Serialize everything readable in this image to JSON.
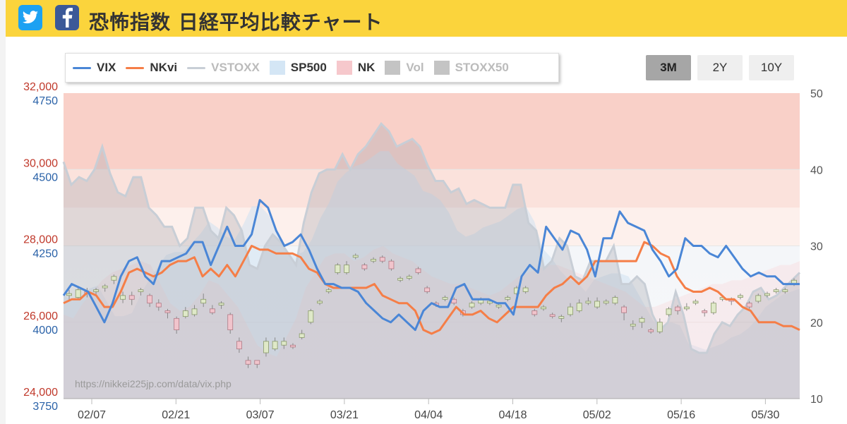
{
  "header": {
    "title": "恐怖指数 日経平均比較チャート",
    "twitter_icon": "twitter-icon",
    "facebook_icon": "facebook-icon",
    "bg_color": "#fbd43c"
  },
  "range_buttons": [
    {
      "label": "3M",
      "active": true
    },
    {
      "label": "2Y",
      "active": false
    },
    {
      "label": "10Y",
      "active": false
    }
  ],
  "legend": [
    {
      "label": "VIX",
      "kind": "line",
      "color": "#4a86d6",
      "text_color": "#333333"
    },
    {
      "label": "NKvi",
      "kind": "line",
      "color": "#f57e47",
      "text_color": "#333333"
    },
    {
      "label": "VSTOXX",
      "kind": "line",
      "color": "#c8ced6",
      "text_color": "#bbbbbb"
    },
    {
      "label": "SP500",
      "kind": "box",
      "color": "#d4e6f5",
      "text_color": "#333333"
    },
    {
      "label": "NK",
      "kind": "box",
      "color": "#f6c8cc",
      "text_color": "#333333"
    },
    {
      "label": "Vol",
      "kind": "box",
      "color": "#c4c4c4",
      "text_color": "#bbbbbb"
    },
    {
      "label": "STOXX50",
      "kind": "box",
      "color": "#c4c4c4",
      "text_color": "#bbbbbb"
    }
  ],
  "watermark": "https://nikkei225jp.com/data/vix.php",
  "chart_data": {
    "type": "line",
    "x_labels": [
      "02/07",
      "02/21",
      "03/07",
      "03/21",
      "04/04",
      "04/18",
      "05/02",
      "05/16",
      "05/30"
    ],
    "axes": {
      "nk": {
        "ticks": [
          "32,000",
          "30,000",
          "28,000",
          "26,000",
          "24,000"
        ],
        "range": [
          24000,
          32000
        ],
        "color": "#c0392b"
      },
      "sp500": {
        "ticks": [
          "4750",
          "4500",
          "4250",
          "4000",
          "3750"
        ],
        "range": [
          3750,
          4750
        ],
        "color": "#2a62a8"
      },
      "vix": {
        "ticks": [
          "50",
          "40",
          "30",
          "20",
          "10"
        ],
        "range": [
          10,
          50
        ],
        "color": "#555555"
      }
    },
    "zones": [
      {
        "from": 40,
        "to": 50,
        "color": "#f9d0c8"
      },
      {
        "from": 35,
        "to": 40,
        "color": "#fbe2dc"
      },
      {
        "from": 30,
        "to": 35,
        "color": "#fdf0ec"
      }
    ],
    "series": [
      {
        "name": "VIX",
        "color": "#4a86d6",
        "values": [
          23.5,
          25,
          24.5,
          24,
          22,
          20,
          22.5,
          26,
          28,
          28.5,
          26,
          25,
          28,
          28,
          28.5,
          29,
          30.5,
          30.5,
          27.5,
          30,
          32.5,
          30,
          30,
          31.5,
          36,
          35,
          32,
          30,
          30.5,
          31.5,
          29.5,
          27,
          25,
          25,
          24.5,
          24.5,
          24,
          22.5,
          21.5,
          20.5,
          20,
          21,
          20,
          19,
          21.5,
          22.5,
          22,
          22,
          24.5,
          25,
          23,
          23,
          23,
          22.5,
          22.5,
          21,
          26,
          27.5,
          26.5,
          32.5,
          31,
          29.5,
          32,
          31.5,
          29.5,
          26,
          31,
          31,
          34.5,
          33,
          32.5,
          32,
          29.5,
          28,
          26,
          27,
          31,
          30,
          30,
          29,
          28.5,
          30,
          28.5,
          27,
          26,
          26.5,
          26,
          26,
          25,
          25,
          25
        ]
      },
      {
        "name": "NKvi",
        "color": "#f57e47",
        "values": [
          22.5,
          23,
          23,
          24,
          23.5,
          22,
          22,
          24,
          26.5,
          27,
          26.5,
          26,
          26.5,
          27.5,
          28,
          28,
          28.5,
          26,
          27,
          26,
          27.5,
          26,
          28,
          30,
          29.5,
          29.5,
          29,
          29,
          29,
          28.5,
          27,
          26.5,
          25,
          24.5,
          24.5,
          24.5,
          24.5,
          24.5,
          25,
          23.5,
          23,
          22.5,
          22.5,
          21.5,
          19,
          18.5,
          19,
          20.5,
          22,
          21,
          21,
          21.5,
          20.5,
          20,
          21,
          22,
          22,
          22,
          22,
          23.5,
          24.5,
          25,
          26,
          25,
          26,
          28,
          28,
          28,
          28,
          28,
          28,
          30.5,
          30,
          29,
          28.5,
          26,
          24.5,
          24,
          24,
          24.5,
          24,
          23,
          23,
          22,
          21.5,
          20,
          20,
          20,
          19.5,
          19.5,
          19
        ]
      },
      {
        "name": "VSTOXX",
        "color": "#c8ced6",
        "values": [
          41,
          38,
          39,
          38.5,
          40,
          43,
          39.5,
          37,
          36.5,
          39,
          39,
          35,
          34,
          32.5,
          32.5,
          30,
          31,
          35,
          35,
          32,
          31,
          35,
          34,
          32,
          27.5,
          27,
          30,
          31.5,
          30.5,
          29,
          27.5,
          33,
          37,
          39.5,
          40,
          40,
          42,
          40,
          42,
          43,
          44.5,
          46,
          45,
          43,
          43.5,
          44,
          43,
          40.5,
          38.5,
          38.5,
          37,
          37.5,
          35.5,
          36,
          35.5,
          35,
          35,
          35,
          38,
          38,
          33,
          32,
          27,
          28,
          31,
          30,
          26,
          25.5,
          28,
          28,
          28,
          30,
          25,
          25,
          26,
          25,
          21,
          19,
          20,
          24,
          21,
          16.5,
          16,
          16,
          18.5,
          20,
          19.5,
          21,
          22,
          24,
          24.5,
          23,
          23.5,
          24.5,
          25.5,
          26.5
        ]
      }
    ],
    "sp500_area": [
      4090,
      4070,
      4085,
      4110,
      4120,
      4070,
      4020,
      4020,
      4030,
      4090,
      4140,
      4180,
      4220,
      4230,
      4230,
      4260,
      4290,
      4330,
      4310,
      4280,
      4270,
      4320,
      4380,
      4380,
      4350,
      4290,
      4230,
      4220,
      4230,
      4270,
      4340,
      4390,
      4460,
      4490,
      4510,
      4520,
      4540,
      4560,
      4560,
      4520,
      4500,
      4480,
      4430,
      4420,
      4400,
      4360,
      4300,
      4280,
      4290,
      4310,
      4320,
      4330,
      4350,
      4370,
      4380,
      4330,
      4240,
      4210,
      4170,
      4140,
      4130,
      4100,
      4140,
      4150,
      4160,
      4160,
      4150,
      4100,
      4050,
      4000,
      3990,
      4000,
      3990,
      3930,
      3920,
      3910,
      3920,
      3930,
      3950,
      3960,
      3980,
      4010,
      4050,
      4070,
      4090,
      4100,
      4110
    ],
    "nk_area": [
      26200,
      26100,
      26500,
      26800,
      27100,
      27300,
      27400,
      27500,
      27600,
      27500,
      27000,
      26500,
      26300,
      26400,
      26700,
      27100,
      27000,
      26700,
      26400,
      25900,
      25400,
      25200,
      25100,
      25600,
      26100,
      26900,
      27300,
      27700,
      27800,
      27800,
      27600,
      27700,
      27900,
      28000,
      27800,
      27700,
      27600,
      27400,
      27200,
      27100,
      27000,
      27000,
      26900,
      26800,
      26700,
      26800,
      27000,
      27200,
      27300,
      27400,
      27500,
      27500,
      27400,
      27300,
      27200,
      27100,
      27000,
      26900,
      26800,
      26600,
      26400,
      26400,
      26500,
      26600,
      26700,
      26800,
      26900,
      27000,
      27000,
      27100,
      27100,
      27200,
      27300,
      27400,
      27500,
      27500,
      27600
    ],
    "nk_candles": [
      {
        "o": 26700,
        "c": 26750,
        "l": 26550,
        "h": 26850
      },
      {
        "o": 26650,
        "c": 26850,
        "l": 26600,
        "h": 26950
      },
      {
        "o": 26800,
        "c": 26750,
        "l": 26650,
        "h": 26900
      },
      {
        "o": 26800,
        "c": 26850,
        "l": 26700,
        "h": 26900
      },
      {
        "o": 26900,
        "c": 26950,
        "l": 26800,
        "h": 27000
      },
      {
        "o": 27100,
        "c": 27200,
        "l": 27000,
        "h": 27250
      },
      {
        "o": 26600,
        "c": 26700,
        "l": 26500,
        "h": 26800
      },
      {
        "o": 26700,
        "c": 26600,
        "l": 26450,
        "h": 26800
      },
      {
        "o": 26800,
        "c": 26850,
        "l": 26700,
        "h": 26900
      },
      {
        "o": 26700,
        "c": 26500,
        "l": 26400,
        "h": 26750
      },
      {
        "o": 26500,
        "c": 26400,
        "l": 26300,
        "h": 26600
      },
      {
        "o": 26300,
        "c": 26250,
        "l": 26100,
        "h": 26350
      },
      {
        "o": 26100,
        "c": 25800,
        "l": 25700,
        "h": 26150
      },
      {
        "o": 26150,
        "c": 26300,
        "l": 26100,
        "h": 26400
      },
      {
        "o": 26200,
        "c": 26350,
        "l": 26150,
        "h": 26450
      },
      {
        "o": 26500,
        "c": 26600,
        "l": 26400,
        "h": 26750
      },
      {
        "o": 26350,
        "c": 26250,
        "l": 26200,
        "h": 26450
      },
      {
        "o": 26450,
        "c": 26500,
        "l": 26350,
        "h": 26550
      },
      {
        "o": 26200,
        "c": 25800,
        "l": 25700,
        "h": 26250
      },
      {
        "o": 25500,
        "c": 25300,
        "l": 25200,
        "h": 25600
      },
      {
        "o": 25000,
        "c": 24900,
        "l": 24800,
        "h": 25100
      },
      {
        "o": 25000,
        "c": 24900,
        "l": 24800,
        "h": 25000
      },
      {
        "o": 25200,
        "c": 25500,
        "l": 25100,
        "h": 25600
      },
      {
        "o": 25300,
        "c": 25500,
        "l": 25250,
        "h": 25600
      },
      {
        "o": 25400,
        "c": 25500,
        "l": 25300,
        "h": 25600
      },
      {
        "o": 25400,
        "c": 25350,
        "l": 25300,
        "h": 25450
      },
      {
        "o": 25600,
        "c": 25700,
        "l": 25550,
        "h": 25800
      },
      {
        "o": 26000,
        "c": 26300,
        "l": 25950,
        "h": 26350
      },
      {
        "o": 26500,
        "c": 26550,
        "l": 26450,
        "h": 26600
      },
      {
        "o": 26800,
        "c": 26850,
        "l": 26750,
        "h": 26900
      },
      {
        "o": 27300,
        "c": 27500,
        "l": 27250,
        "h": 27550
      },
      {
        "o": 27300,
        "c": 27500,
        "l": 27250,
        "h": 27600
      },
      {
        "o": 27700,
        "c": 27750,
        "l": 27650,
        "h": 27800
      },
      {
        "o": 27500,
        "c": 27400,
        "l": 27350,
        "h": 27550
      },
      {
        "o": 27600,
        "c": 27650,
        "l": 27550,
        "h": 27700
      },
      {
        "o": 27700,
        "c": 27600,
        "l": 27550,
        "h": 27750
      },
      {
        "o": 27600,
        "c": 27400,
        "l": 27350,
        "h": 27650
      },
      {
        "o": 27100,
        "c": 27150,
        "l": 27050,
        "h": 27200
      },
      {
        "o": 27150,
        "c": 27200,
        "l": 27100,
        "h": 27250
      },
      {
        "o": 27400,
        "c": 27300,
        "l": 27250,
        "h": 27450
      },
      {
        "o": 26900,
        "c": 26800,
        "l": 26750,
        "h": 26950
      },
      {
        "o": 26500,
        "c": 26450,
        "l": 26400,
        "h": 26550
      },
      {
        "o": 26600,
        "c": 26650,
        "l": 26550,
        "h": 26700
      },
      {
        "o": 26600,
        "c": 26500,
        "l": 26450,
        "h": 26650
      },
      {
        "o": 26300,
        "c": 26200,
        "l": 26150,
        "h": 26350
      },
      {
        "o": 26400,
        "c": 26500,
        "l": 26350,
        "h": 26550
      },
      {
        "o": 26500,
        "c": 26600,
        "l": 26450,
        "h": 26650
      },
      {
        "o": 26500,
        "c": 26550,
        "l": 26450,
        "h": 26600
      },
      {
        "o": 26400,
        "c": 26450,
        "l": 26350,
        "h": 26500
      },
      {
        "o": 26600,
        "c": 26650,
        "l": 26550,
        "h": 26700
      },
      {
        "o": 26750,
        "c": 26900,
        "l": 26700,
        "h": 26950
      },
      {
        "o": 26800,
        "c": 26900,
        "l": 26750,
        "h": 26950
      },
      {
        "o": 26300,
        "c": 26200,
        "l": 26150,
        "h": 26350
      },
      {
        "o": 26350,
        "c": 26400,
        "l": 26300,
        "h": 26450
      },
      {
        "o": 26200,
        "c": 26150,
        "l": 26100,
        "h": 26250
      },
      {
        "o": 26100,
        "c": 26150,
        "l": 26000,
        "h": 26200
      },
      {
        "o": 26200,
        "c": 26400,
        "l": 26150,
        "h": 26500
      },
      {
        "o": 26300,
        "c": 26500,
        "l": 26250,
        "h": 26600
      },
      {
        "o": 26500,
        "c": 26550,
        "l": 26450,
        "h": 26650
      },
      {
        "o": 26400,
        "c": 26550,
        "l": 26350,
        "h": 26650
      },
      {
        "o": 26500,
        "c": 26550,
        "l": 26450,
        "h": 26600
      },
      {
        "o": 26500,
        "c": 26650,
        "l": 26450,
        "h": 26700
      },
      {
        "o": 26400,
        "c": 26250,
        "l": 26050,
        "h": 26450
      },
      {
        "o": 25900,
        "c": 25950,
        "l": 25800,
        "h": 26050
      },
      {
        "o": 26000,
        "c": 26100,
        "l": 25850,
        "h": 26150
      },
      {
        "o": 25800,
        "c": 25750,
        "l": 25700,
        "h": 25850
      },
      {
        "o": 25750,
        "c": 26000,
        "l": 25700,
        "h": 26100
      },
      {
        "o": 26200,
        "c": 26350,
        "l": 26150,
        "h": 26400
      },
      {
        "o": 26400,
        "c": 26300,
        "l": 26200,
        "h": 26450
      },
      {
        "o": 26350,
        "c": 26400,
        "l": 26300,
        "h": 26500
      },
      {
        "o": 26500,
        "c": 26550,
        "l": 26450,
        "h": 26600
      },
      {
        "o": 26300,
        "c": 26250,
        "l": 26150,
        "h": 26350
      },
      {
        "o": 26250,
        "c": 26500,
        "l": 26200,
        "h": 26550
      },
      {
        "o": 26600,
        "c": 26650,
        "l": 26550,
        "h": 26700
      },
      {
        "o": 26600,
        "c": 26550,
        "l": 26450,
        "h": 26650
      },
      {
        "o": 26650,
        "c": 26700,
        "l": 26600,
        "h": 26750
      },
      {
        "o": 26500,
        "c": 26400,
        "l": 26350,
        "h": 26550
      },
      {
        "o": 26550,
        "c": 26700,
        "l": 26500,
        "h": 26750
      },
      {
        "o": 26700,
        "c": 26750,
        "l": 26650,
        "h": 26800
      },
      {
        "o": 26800,
        "c": 26850,
        "l": 26750,
        "h": 26900
      },
      {
        "o": 26800,
        "c": 26850,
        "l": 26750,
        "h": 26900
      },
      {
        "o": 27000,
        "c": 27100,
        "l": 26950,
        "h": 27150
      }
    ]
  }
}
